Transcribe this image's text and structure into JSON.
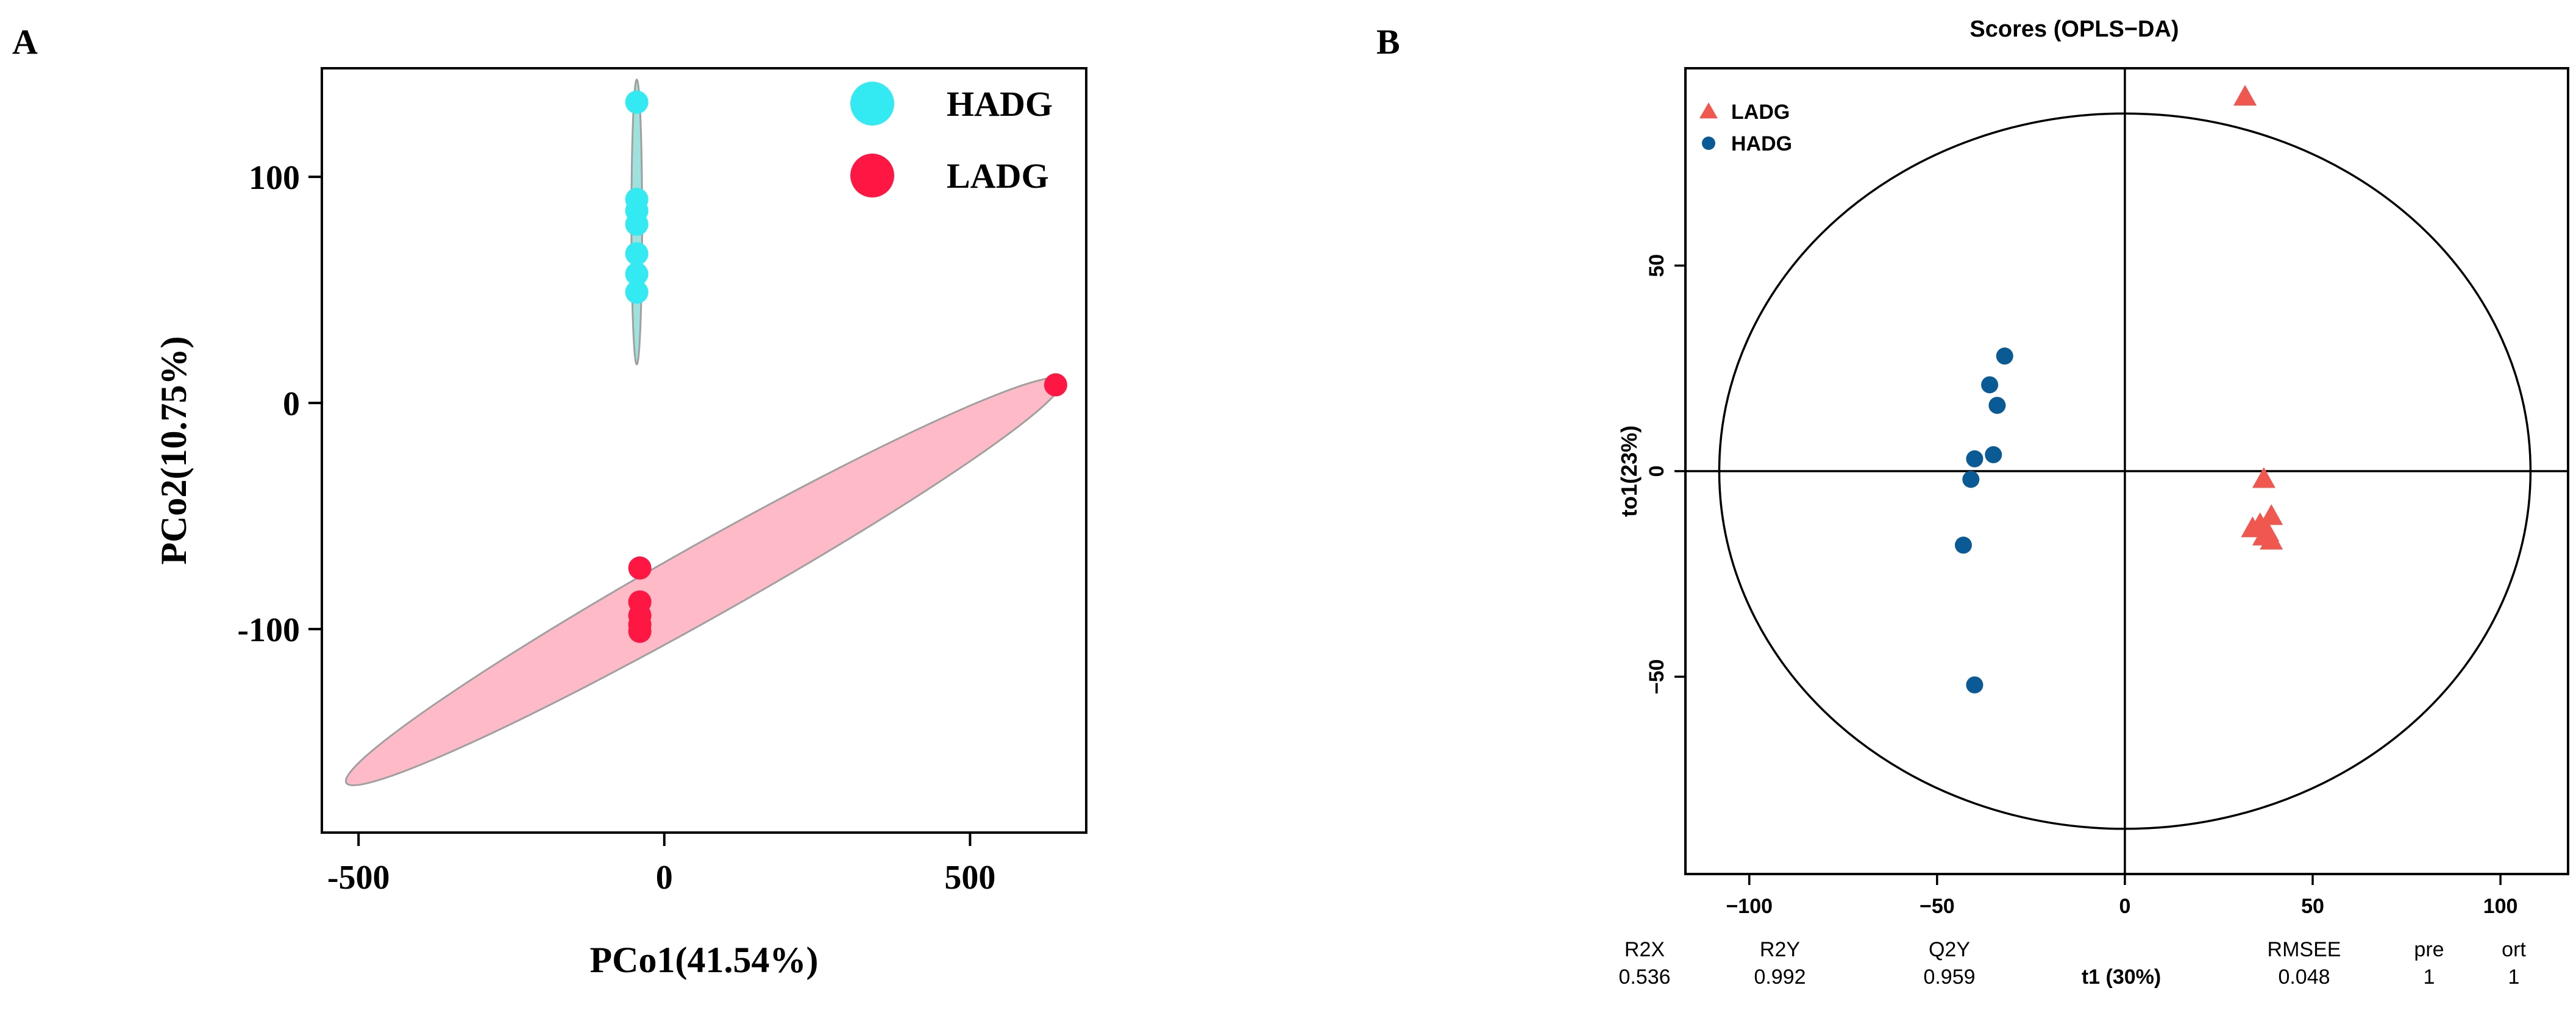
{
  "colors": {
    "hadg_a": "#33eaf2",
    "ladg_a": "#ff1744",
    "ellipse_ladg_fill": "#ffb6c4",
    "ellipse_hadg_fill": "#7fd8d2",
    "ellipse_stroke": "#a0a0a0",
    "ladg_b": "#f0574f",
    "hadg_b": "#0a5a96",
    "axis": "#000000"
  },
  "chart_data": [
    {
      "panel": "A",
      "type": "scatter",
      "title": "",
      "xlabel": "PCo1(41.54%)",
      "ylabel": "PCo2(10.75%)",
      "xlim": [
        -560,
        690
      ],
      "ylim": [
        -190,
        148
      ],
      "xticks": [
        -500,
        0,
        500
      ],
      "yticks": [
        -100,
        0,
        100
      ],
      "xticklabels": [
        "-500",
        "0",
        "500"
      ],
      "yticklabels": [
        "-100",
        "0",
        "100"
      ],
      "legend": [
        {
          "label": "HADG",
          "color_key": "hadg_a"
        },
        {
          "label": "LADG",
          "color_key": "ladg_a"
        }
      ],
      "series": [
        {
          "name": "HADG",
          "color_key": "hadg_a",
          "points": [
            [
              -45,
              133
            ],
            [
              -45,
              90
            ],
            [
              -45,
              85
            ],
            [
              -45,
              79
            ],
            [
              -45,
              66
            ],
            [
              -45,
              57
            ],
            [
              -45,
              49
            ]
          ]
        },
        {
          "name": "LADG",
          "color_key": "ladg_a",
          "points": [
            [
              640,
              8
            ],
            [
              -40,
              -73
            ],
            [
              -40,
              -88
            ],
            [
              -40,
              -94
            ],
            [
              -40,
              -98
            ],
            [
              -40,
              -101
            ]
          ]
        }
      ],
      "ellipses": [
        {
          "name": "LADG",
          "fill_key": "ellipse_ladg_fill",
          "cx": 62,
          "cy": -79,
          "p1": [
            650,
            10
          ],
          "p2": [
            -520,
            -168
          ],
          "minor": 27
        },
        {
          "name": "HADG",
          "fill_key": "ellipse_hadg_fill",
          "cx": -45,
          "cy": 81,
          "p1": [
            -45,
            143
          ],
          "p2": [
            -45,
            17
          ],
          "minor": 4
        }
      ]
    },
    {
      "panel": "B",
      "type": "scatter",
      "title": "Scores (OPLS−DA)",
      "xlabel": "t1 (30%)",
      "ylabel": "to1(23%)",
      "xlim": [
        -117,
        118
      ],
      "ylim": [
        -98,
        98
      ],
      "xticks": [
        -100,
        -50,
        0,
        50,
        100
      ],
      "yticks": [
        -50,
        0,
        50
      ],
      "xticklabels": [
        "−100",
        "−50",
        "0",
        "50",
        "100"
      ],
      "yticklabels": [
        "−50",
        "0",
        "50"
      ],
      "legend": [
        {
          "label": "LADG",
          "color_key": "ladg_b",
          "marker": "triangle"
        },
        {
          "label": "HADG",
          "color_key": "hadg_b",
          "marker": "circle"
        }
      ],
      "hotelling_ellipse": {
        "rx": 108,
        "ry": 87
      },
      "series": [
        {
          "name": "LADG",
          "marker": "triangle",
          "color_key": "ladg_b",
          "points": [
            [
              32,
              91
            ],
            [
              37,
              -2
            ],
            [
              36,
              -13
            ],
            [
              34,
              -14
            ],
            [
              39,
              -11
            ],
            [
              38,
              -15
            ],
            [
              37,
              -16
            ],
            [
              39,
              -17
            ]
          ]
        },
        {
          "name": "HADG",
          "marker": "circle",
          "color_key": "hadg_b",
          "points": [
            [
              -32,
              28
            ],
            [
              -36,
              21
            ],
            [
              -34,
              16
            ],
            [
              -35,
              4
            ],
            [
              -40,
              3
            ],
            [
              -41,
              -2
            ],
            [
              -43,
              -18
            ],
            [
              -40,
              -52
            ]
          ]
        }
      ],
      "metrics": {
        "headers": [
          "R2X",
          "R2Y",
          "Q2Y",
          "RMSEE",
          "pre",
          "ort"
        ],
        "values": [
          "0.536",
          "0.992",
          "0.959",
          "0.048",
          "1",
          "1"
        ]
      }
    }
  ],
  "panel_labels": [
    "A",
    "B"
  ]
}
